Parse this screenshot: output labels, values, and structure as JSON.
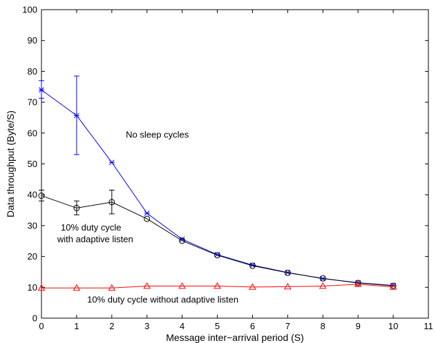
{
  "chart_data": {
    "type": "line",
    "title": "",
    "xlabel": "Message inter−arrival period (S)",
    "ylabel": "Data throughput (Byte/S)",
    "xlim": [
      0,
      11
    ],
    "ylim": [
      0,
      100
    ],
    "xticks": [
      0,
      1,
      2,
      3,
      4,
      5,
      6,
      7,
      8,
      9,
      10,
      11
    ],
    "yticks": [
      0,
      10,
      20,
      30,
      40,
      50,
      60,
      70,
      80,
      90,
      100
    ],
    "grid": false,
    "legend": "none",
    "series": [
      {
        "color": "#0000ff",
        "marker": "star",
        "x": [
          0,
          1,
          2,
          3,
          4,
          5,
          6,
          7,
          8,
          9,
          10
        ],
        "y": [
          74,
          65.7,
          50.5,
          34,
          25.6,
          20.6,
          17.2,
          14.8,
          12.8,
          11.5,
          10.6
        ],
        "err_low": [
          71.3,
          53,
          null,
          null,
          null,
          null,
          null,
          null,
          null,
          null,
          null
        ],
        "err_high": [
          77,
          78.5,
          null,
          null,
          null,
          null,
          null,
          null,
          null,
          null,
          null
        ]
      },
      {
        "color": "#000000",
        "marker": "circle",
        "x": [
          0,
          1,
          2,
          3,
          4,
          5,
          6,
          7,
          8,
          9,
          10
        ],
        "y": [
          39.7,
          35.7,
          37.6,
          32.2,
          25.1,
          20.4,
          17.0,
          14.7,
          12.9,
          11.4,
          10.5
        ],
        "err_low": [
          38,
          33.5,
          33.8,
          null,
          null,
          null,
          null,
          null,
          null,
          null,
          null
        ],
        "err_high": [
          41.5,
          38,
          41.5,
          null,
          null,
          null,
          null,
          null,
          null,
          null,
          null
        ]
      },
      {
        "color": "#ff0000",
        "marker": "triangle",
        "x": [
          0,
          1,
          2,
          3,
          4,
          5,
          6,
          7,
          8,
          9,
          10
        ],
        "y": [
          9.8,
          9.8,
          9.8,
          10.4,
          10.4,
          10.4,
          10.1,
          10.2,
          10.4,
          11.0,
          10.1
        ],
        "err_low": [
          null,
          null,
          null,
          null,
          null,
          null,
          null,
          null,
          null,
          null,
          null
        ],
        "err_high": [
          null,
          null,
          null,
          null,
          null,
          null,
          null,
          null,
          null,
          null,
          null
        ]
      }
    ],
    "annotations": [
      {
        "text": "No sleep cycles",
        "x": 2.4,
        "y": 58.5
      },
      {
        "text": "10% duty cycle",
        "x": 0.55,
        "y": 28.4
      },
      {
        "text": "with adaptive listen",
        "x": 0.45,
        "y": 24.6
      },
      {
        "text": "10% duty cycle without adaptive listen",
        "x": 1.3,
        "y": 5
      }
    ]
  }
}
